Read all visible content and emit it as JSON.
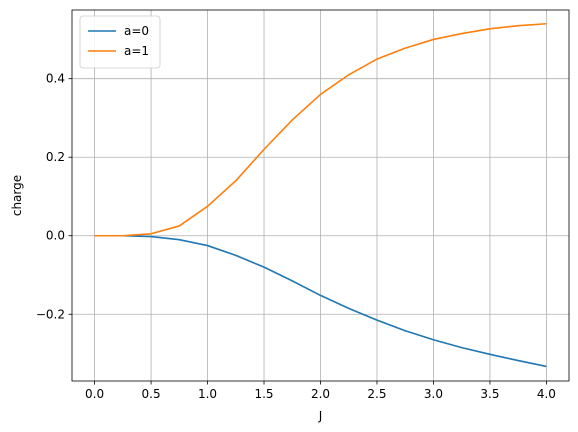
{
  "chart_data": {
    "type": "line",
    "xlabel": "J",
    "ylabel": "charge",
    "xlim": [
      -0.2,
      4.2
    ],
    "ylim": [
      -0.37,
      0.575
    ],
    "xticks": [
      0.0,
      0.5,
      1.0,
      1.5,
      2.0,
      2.5,
      3.0,
      3.5,
      4.0
    ],
    "xtick_labels": [
      "0.0",
      "0.5",
      "1.0",
      "1.5",
      "2.0",
      "2.5",
      "3.0",
      "3.5",
      "4.0"
    ],
    "yticks": [
      -0.2,
      0.0,
      0.2,
      0.4
    ],
    "ytick_labels": [
      "−0.2",
      "0.0",
      "0.2",
      "0.4"
    ],
    "grid": true,
    "legend_position": "top-left",
    "series": [
      {
        "name": "a=0",
        "color": "#1f77b4",
        "x": [
          0.0,
          0.25,
          0.5,
          0.75,
          1.0,
          1.25,
          1.5,
          1.75,
          2.0,
          2.25,
          2.5,
          2.75,
          3.0,
          3.25,
          3.5,
          3.75,
          4.0
        ],
        "y": [
          0.0,
          0.0,
          -0.002,
          -0.01,
          -0.025,
          -0.05,
          -0.08,
          -0.115,
          -0.152,
          -0.185,
          -0.215,
          -0.242,
          -0.265,
          -0.285,
          -0.302,
          -0.318,
          -0.333
        ]
      },
      {
        "name": "a=1",
        "color": "#ff7f0e",
        "x": [
          0.0,
          0.25,
          0.5,
          0.75,
          1.0,
          1.25,
          1.5,
          1.75,
          2.0,
          2.25,
          2.5,
          2.75,
          3.0,
          3.25,
          3.5,
          3.75,
          4.0
        ],
        "y": [
          0.0,
          0.0,
          0.005,
          0.025,
          0.075,
          0.14,
          0.22,
          0.295,
          0.36,
          0.41,
          0.45,
          0.478,
          0.5,
          0.515,
          0.527,
          0.535,
          0.54
        ]
      }
    ]
  }
}
